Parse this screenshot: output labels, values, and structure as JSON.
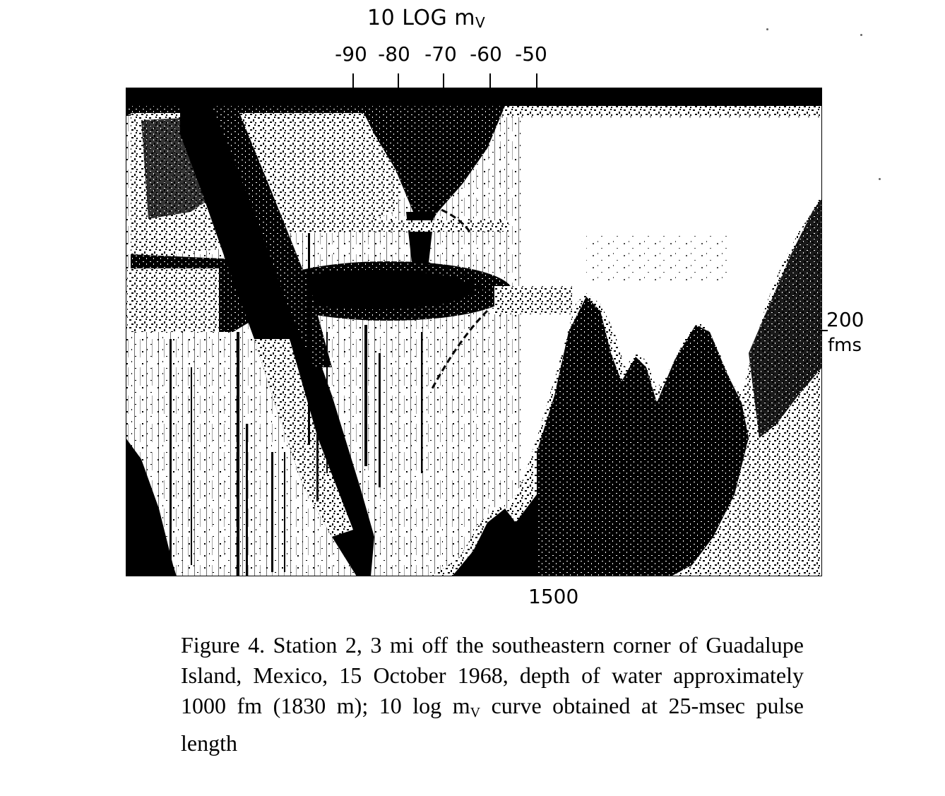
{
  "scale": {
    "title_main": "10 LOG m",
    "title_sub": "V",
    "ticks": [
      "-90",
      "-80",
      "-70",
      "-60",
      "-50"
    ]
  },
  "axes": {
    "right_value": "200",
    "right_unit": "fms",
    "bottom_value": "1500"
  },
  "caption": {
    "text_before_sub": "Figure 4. Station 2, 3 mi off the southeastern corner of Guadalupe Island, Mexico, 15 October 1968, depth of water approximately 1000 fm (1830 m); 10 log m",
    "sub": "V",
    "text_after_sub": " curve obtained at 25-msec pulse length"
  },
  "colors": {
    "ink": "#000000",
    "paper": "#ffffff"
  }
}
